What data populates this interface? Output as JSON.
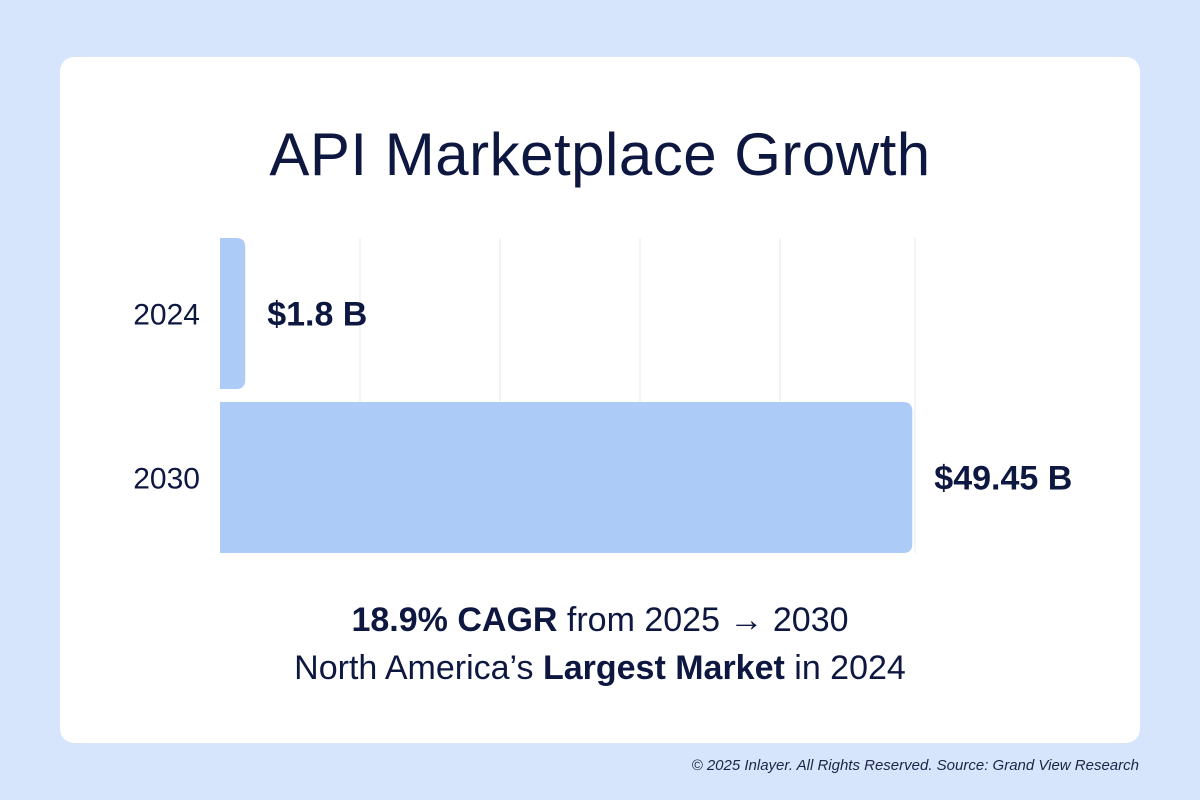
{
  "chart_data": {
    "type": "bar",
    "orientation": "horizontal",
    "title": "API Marketplace Growth",
    "categories": [
      "2024",
      "2030"
    ],
    "values": [
      1.8,
      49.45
    ],
    "value_labels": [
      "$1.8 B",
      "$49.45 B"
    ],
    "unit": "USD billions",
    "xlim": [
      0,
      50
    ],
    "grid": true,
    "bar_color": "#adcbf7"
  },
  "captions": {
    "line1_bold": "18.9% CAGR",
    "line1_rest": " from 2025 → 2030",
    "line2_start": "North America’s ",
    "line2_bold": "Largest Market",
    "line2_end": " in 2024"
  },
  "footer": "© 2025 Inlayer. All Rights Reserved. Source: Grand View Research",
  "colors": {
    "background": "#d6e5fb",
    "card": "#ffffff",
    "text": "#0d1740",
    "gridline": "#e6e8ee"
  }
}
